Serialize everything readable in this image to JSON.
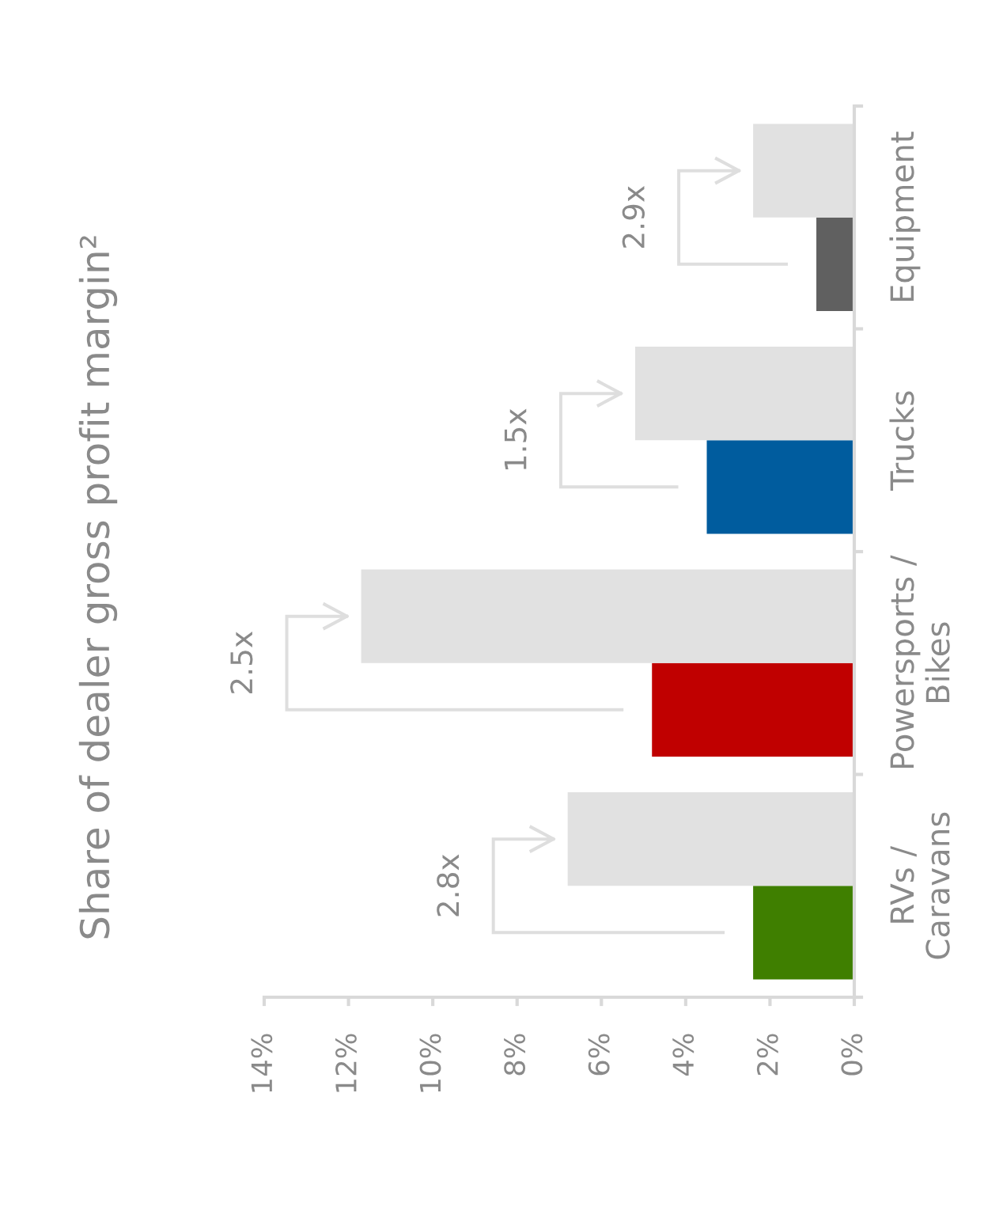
{
  "chart_data": {
    "type": "bar",
    "orientation": "horizontal",
    "title": "Share of dealer gross profit margin²",
    "categories": [
      "Equipment",
      "Trucks",
      "Powersports /\nBikes",
      "RVs /\nCaravans"
    ],
    "series": [
      {
        "colors": [
          "#606060",
          "#005c9e",
          "#c00000",
          "#3f7f00"
        ],
        "values": [
          0.9,
          3.5,
          4.8,
          2.4
        ]
      },
      {
        "color": "#e1e1e1",
        "values": [
          2.4,
          5.2,
          11.7,
          6.8
        ]
      }
    ],
    "xlim": [
      14,
      0
    ],
    "xticks": [
      {
        "value": 14,
        "label": "14%"
      },
      {
        "value": 12,
        "label": "12%"
      },
      {
        "value": 10,
        "label": "10%"
      },
      {
        "value": 8,
        "label": "8%"
      },
      {
        "value": 6,
        "label": "6%"
      },
      {
        "value": 4,
        "label": "4%"
      },
      {
        "value": 2,
        "label": "2%"
      },
      {
        "value": 0,
        "label": "0%"
      }
    ],
    "annotations": [
      "2.9x",
      "1.5x",
      "2.5x",
      "2.8x"
    ]
  }
}
